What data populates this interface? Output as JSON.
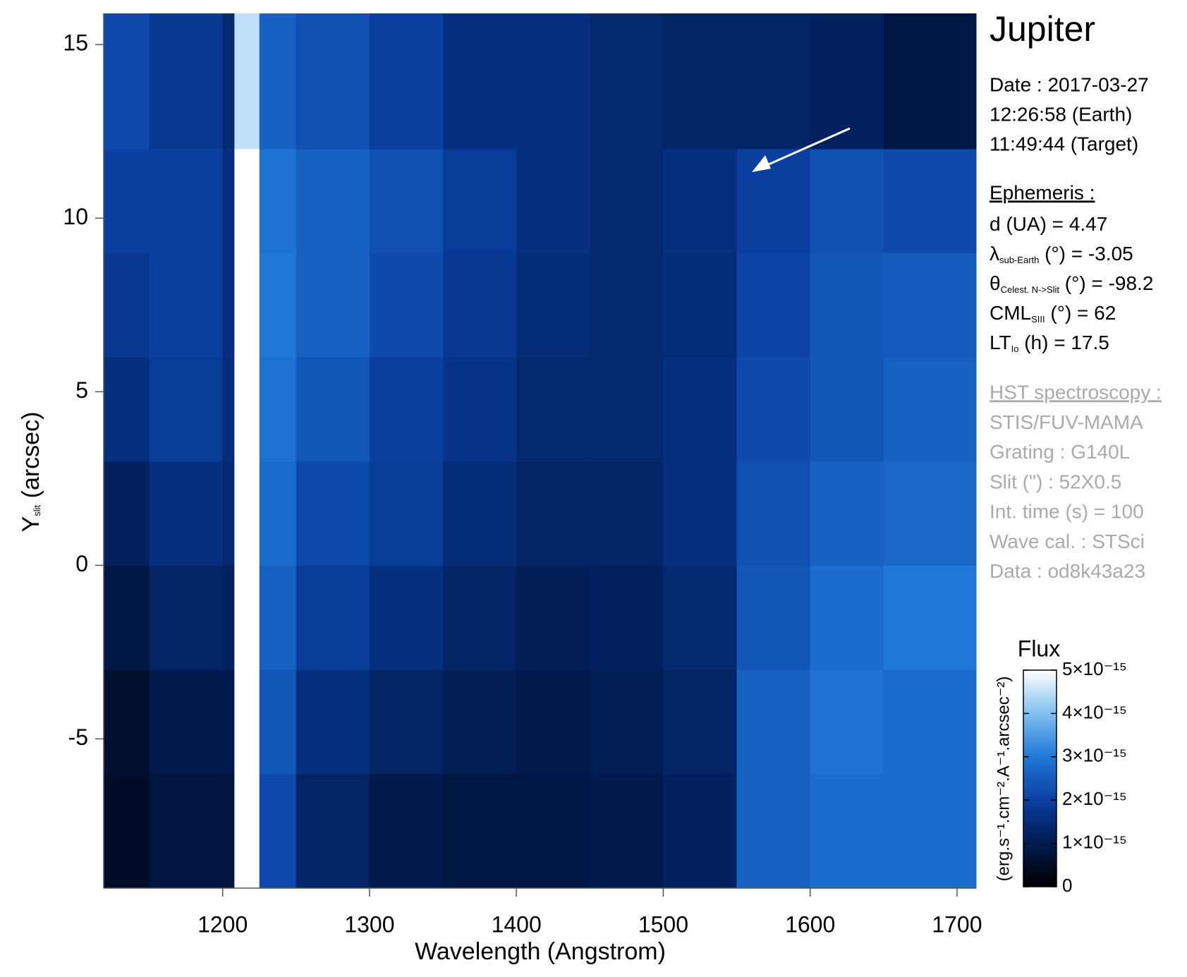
{
  "chart_data": {
    "type": "heatmap",
    "title": "Jupiter",
    "xlabel": "Wavelength (Angstrom)",
    "ylabel": {
      "text": "Y",
      "sub": "slit",
      "rest": " (arcsec)"
    },
    "xlim": [
      1119,
      1713
    ],
    "ylim": [
      -9.3,
      15.9
    ],
    "xticks": [
      1200,
      1300,
      1400,
      1500,
      1600,
      1700
    ],
    "yticks": [
      -5,
      0,
      5,
      10,
      15
    ],
    "xbins": [
      1119,
      1150,
      1200,
      1208,
      1225,
      1250,
      1300,
      1350,
      1400,
      1450,
      1500,
      1550,
      1600,
      1650,
      1713
    ],
    "ybins": [
      -9.3,
      -6,
      -3,
      0,
      3,
      6,
      9,
      12,
      15.9
    ],
    "values": [
      [
        5e-16,
        8e-16,
        8e-16,
        5e-15,
        2.2e-15,
        1.3e-15,
        1e-15,
        9e-16,
        9e-16,
        1e-15,
        1.2e-15,
        2.6e-15,
        2.8e-15,
        2.8e-15
      ],
      [
        6e-16,
        1e-15,
        1e-15,
        5e-15,
        2.4e-15,
        1.6e-15,
        1.3e-15,
        1.1e-15,
        1e-15,
        1.1e-15,
        1.3e-15,
        2.6e-15,
        2.9e-15,
        2.8e-15
      ],
      [
        9e-16,
        1.3e-15,
        1.2e-15,
        5e-15,
        2.6e-15,
        1.9e-15,
        1.6e-15,
        1.3e-15,
        1.1e-15,
        1.2e-15,
        1.4e-15,
        2.4e-15,
        2.8e-15,
        3e-15
      ],
      [
        1.2e-15,
        1.6e-15,
        1.4e-15,
        5e-15,
        2.8e-15,
        2.2e-15,
        1.9e-15,
        1.5e-15,
        1.3e-15,
        1.3e-15,
        1.6e-15,
        2.3e-15,
        2.6e-15,
        2.7e-15
      ],
      [
        1.6e-15,
        1.9e-15,
        1.5e-15,
        5e-15,
        2.9e-15,
        2.4e-15,
        2e-15,
        1.7e-15,
        1.4e-15,
        1.4e-15,
        1.6e-15,
        2.2e-15,
        2.4e-15,
        2.6e-15
      ],
      [
        1.8e-15,
        2e-15,
        1.6e-15,
        5e-15,
        3e-15,
        2.6e-15,
        2.2e-15,
        1.8e-15,
        1.5e-15,
        1.4e-15,
        1.5e-15,
        2.1e-15,
        2.4e-15,
        2.5e-15
      ],
      [
        2e-15,
        2e-15,
        1.6e-15,
        5e-15,
        2.9e-15,
        2.6e-15,
        2.3e-15,
        1.9e-15,
        1.6e-15,
        1.4e-15,
        1.6e-15,
        2e-15,
        2.3e-15,
        2.2e-15
      ],
      [
        2.2e-15,
        1.8e-15,
        1.4e-15,
        4.5e-15,
        2.6e-15,
        2.3e-15,
        2e-15,
        1.6e-15,
        1.6e-15,
        1.4e-15,
        1.3e-15,
        1.3e-15,
        1.2e-15,
        9e-16
      ]
    ],
    "colorscale": [
      "#000000",
      "#001a4d",
      "#0a3fa0",
      "#1f78d8",
      "#7fc0f0",
      "#ffffff"
    ],
    "colorbar": {
      "title": "Flux",
      "label": "(erg.s⁻¹.cm⁻².A⁻¹.arcsec⁻²)",
      "clim": [
        0,
        5e-15
      ],
      "ticks": [
        0,
        {
          "value": 1e-15,
          "label": "1×10⁻¹⁵"
        },
        {
          "value": 2e-15,
          "label": "2×10⁻¹⁵"
        },
        {
          "value": 3e-15,
          "label": "3×10⁻¹⁵"
        },
        {
          "value": 4e-15,
          "label": "4×10⁻¹⁵"
        },
        {
          "value": 5e-15,
          "label": "5×10⁻¹⁵"
        }
      ]
    },
    "info": [
      "Date : 2017-03-27",
      "12:26:58 (Earth)",
      "11:49:44 (Target)"
    ],
    "ephemeris": {
      "header": "Ephemeris :",
      "lines": [
        {
          "text": "d (UA)     = 4.47"
        },
        {
          "text": "λ",
          "sub": "sub-Earth",
          "rest": " (°)  = -3.05"
        },
        {
          "text": "θ",
          "sub": "Celest. N->Slit",
          "rest": " (°) = -98.2"
        },
        {
          "text": "CML",
          "sub": "SIII",
          "rest": " (°) = 62"
        },
        {
          "text": "LT",
          "sub": "Io",
          "rest": " (h) = 17.5"
        }
      ]
    },
    "instrument": {
      "header": "HST spectroscopy :",
      "lines": [
        {
          "text": "STIS/FUV-MAMA"
        },
        {
          "text": "Grating : G140L"
        },
        {
          "text": "Slit (\") : 52X0.5"
        },
        {
          "text": "Int. time (s) = 100"
        },
        {
          "text": "Wave cal. : STSci"
        },
        {
          "text": "Data : od8k43a23"
        }
      ]
    }
  }
}
